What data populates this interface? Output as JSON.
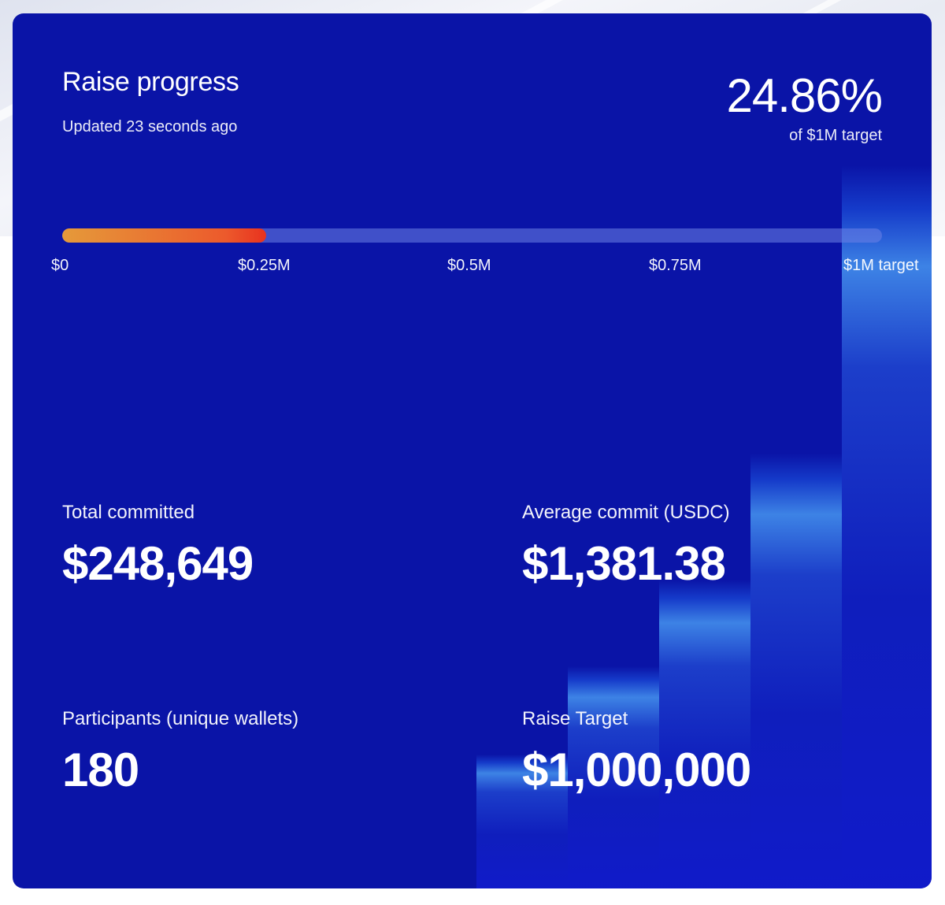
{
  "panel": {
    "title": "Raise progress",
    "updated": "Updated 23 seconds ago",
    "percent": "24.86%",
    "percent_sub": "of $1M target"
  },
  "progress": {
    "value_fraction": 0.2486,
    "ticks": [
      "$0",
      "$0.25M",
      "$0.5M",
      "$0.75M",
      "$1M target"
    ]
  },
  "stats": {
    "total_committed": {
      "label": "Total committed",
      "value": "$248,649"
    },
    "average_commit": {
      "label": "Average commit (USDC)",
      "value": "$1,381.38"
    },
    "participants": {
      "label": "Participants (unique wallets)",
      "value": "180"
    },
    "raise_target": {
      "label": "Raise Target",
      "value": "$1,000,000"
    }
  },
  "colors": {
    "card_background": "#0a14a7",
    "progress_start": "#e59a3a",
    "progress_end": "#e8321f",
    "accent_bars": "#2f7fe6"
  }
}
